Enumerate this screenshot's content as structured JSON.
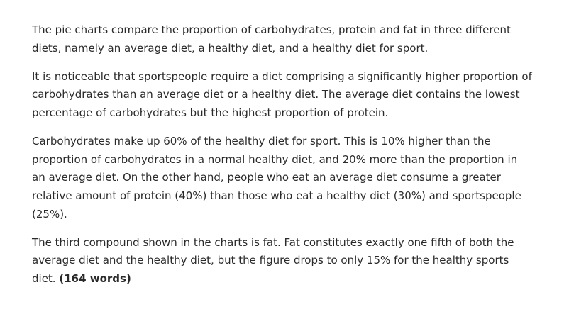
{
  "essay": {
    "paragraphs": [
      "The pie charts compare the proportion of carbohydrates, protein and fat in three different diets, namely an average diet, a healthy diet, and a healthy diet for sport.",
      "It is noticeable that sportspeople require a diet comprising a significantly higher proportion of carbohydrates than an average diet or a healthy diet. The average diet contains the lowest percentage of carbohydrates but the highest proportion of protein.",
      "Carbohydrates make up 60% of the healthy diet for sport. This is 10% higher than the proportion of carbohydrates in a normal healthy diet, and 20% more than the proportion in an average diet. On the other hand, people who eat an average diet consume a greater relative amount of protein (40%) than those who eat a healthy diet (30%) and sportspeople (25%).",
      "The third compound shown in the charts is fat. Fat constitutes exactly one fifth of both the average diet and the healthy diet, but the figure drops to only 15% for the healthy sports diet."
    ],
    "word_count": "(164 words)"
  }
}
